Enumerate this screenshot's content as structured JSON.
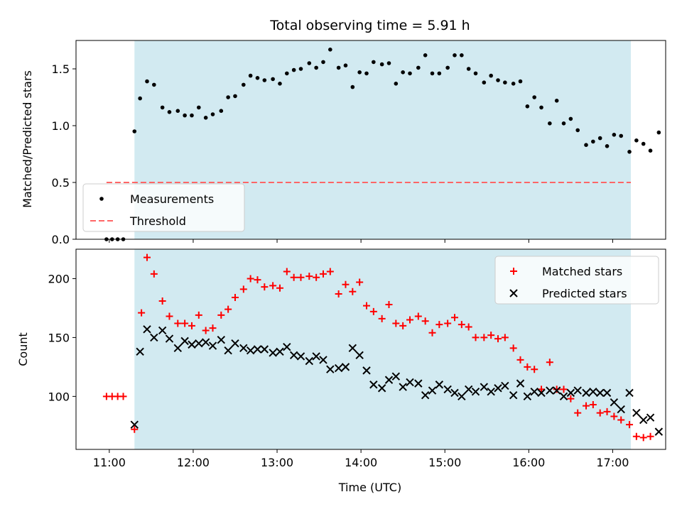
{
  "title": "Total observing time = 5.91 h",
  "chart_data": [
    {
      "type": "scatter",
      "ylabel": "Matched/Predicted stars",
      "ylim": [
        0,
        1.75
      ],
      "yticks": [
        "0.0",
        "0.5",
        "1.0",
        "1.5"
      ],
      "legend_location": "lower-left",
      "shaded_span": {
        "start": "11:18",
        "end": "17:13",
        "color": "#add8e6"
      },
      "threshold": {
        "name": "Threshold",
        "value": 0.5,
        "color": "#ff6666",
        "x_start": "10:58",
        "x_end": "17:13"
      },
      "series": [
        {
          "name": "Measurements",
          "color": "#000000",
          "marker": "dot",
          "points": [
            [
              "10:58",
              0
            ],
            [
              "11:02",
              0
            ],
            [
              "11:06",
              0
            ],
            [
              "11:10",
              0
            ],
            [
              "11:18",
              0.95
            ],
            [
              "11:22",
              1.24
            ],
            [
              "11:27",
              1.39
            ],
            [
              "11:32",
              1.36
            ],
            [
              "11:38",
              1.16
            ],
            [
              "11:43",
              1.12
            ],
            [
              "11:49",
              1.13
            ],
            [
              "11:54",
              1.09
            ],
            [
              "11:59",
              1.09
            ],
            [
              "12:04",
              1.16
            ],
            [
              "12:09",
              1.07
            ],
            [
              "12:14",
              1.1
            ],
            [
              "12:20",
              1.13
            ],
            [
              "12:25",
              1.25
            ],
            [
              "12:30",
              1.26
            ],
            [
              "12:36",
              1.36
            ],
            [
              "12:41",
              1.44
            ],
            [
              "12:46",
              1.42
            ],
            [
              "12:51",
              1.4
            ],
            [
              "12:57",
              1.41
            ],
            [
              "13:02",
              1.37
            ],
            [
              "13:07",
              1.46
            ],
            [
              "13:12",
              1.49
            ],
            [
              "13:17",
              1.5
            ],
            [
              "13:23",
              1.55
            ],
            [
              "13:28",
              1.51
            ],
            [
              "13:33",
              1.56
            ],
            [
              "13:38",
              1.67
            ],
            [
              "13:44",
              1.51
            ],
            [
              "13:49",
              1.53
            ],
            [
              "13:54",
              1.34
            ],
            [
              "13:59",
              1.47
            ],
            [
              "14:04",
              1.46
            ],
            [
              "14:09",
              1.56
            ],
            [
              "14:15",
              1.54
            ],
            [
              "14:20",
              1.55
            ],
            [
              "14:25",
              1.37
            ],
            [
              "14:30",
              1.47
            ],
            [
              "14:35",
              1.46
            ],
            [
              "14:41",
              1.51
            ],
            [
              "14:46",
              1.62
            ],
            [
              "14:51",
              1.46
            ],
            [
              "14:56",
              1.46
            ],
            [
              "15:02",
              1.51
            ],
            [
              "15:07",
              1.62
            ],
            [
              "15:12",
              1.62
            ],
            [
              "15:17",
              1.5
            ],
            [
              "15:22",
              1.46
            ],
            [
              "15:28",
              1.38
            ],
            [
              "15:33",
              1.44
            ],
            [
              "15:38",
              1.4
            ],
            [
              "15:43",
              1.38
            ],
            [
              "15:49",
              1.37
            ],
            [
              "15:54",
              1.39
            ],
            [
              "15:59",
              1.17
            ],
            [
              "16:04",
              1.25
            ],
            [
              "16:09",
              1.16
            ],
            [
              "16:15",
              1.02
            ],
            [
              "16:20",
              1.22
            ],
            [
              "16:25",
              1.02
            ],
            [
              "16:30",
              1.06
            ],
            [
              "16:35",
              0.96
            ],
            [
              "16:41",
              0.83
            ],
            [
              "16:46",
              0.86
            ],
            [
              "16:51",
              0.89
            ],
            [
              "16:56",
              0.82
            ],
            [
              "17:01",
              0.92
            ],
            [
              "17:06",
              0.91
            ],
            [
              "17:12",
              0.77
            ],
            [
              "17:17",
              0.87
            ],
            [
              "17:22",
              0.84
            ],
            [
              "17:27",
              0.78
            ],
            [
              "17:33",
              0.94
            ]
          ]
        }
      ]
    },
    {
      "type": "scatter",
      "title": "",
      "xlabel": "Time (UTC)",
      "ylabel": "Count",
      "ylim": [
        55,
        225
      ],
      "yticks": [
        "100",
        "150",
        "200"
      ],
      "xticks": [
        "11:00",
        "12:00",
        "13:00",
        "14:00",
        "15:00",
        "16:00",
        "17:00"
      ],
      "legend_location": "upper-right",
      "shaded_span": {
        "start": "11:18",
        "end": "17:13",
        "color": "#add8e6"
      },
      "series": [
        {
          "name": "Matched stars",
          "color": "#ff0000",
          "marker": "plus",
          "points": [
            [
              "10:58",
              100
            ],
            [
              "11:02",
              100
            ],
            [
              "11:06",
              100
            ],
            [
              "11:10",
              100
            ],
            [
              "11:18",
              72
            ],
            [
              "11:23",
              171
            ],
            [
              "11:27",
              218
            ],
            [
              "11:32",
              204
            ],
            [
              "11:38",
              181
            ],
            [
              "11:43",
              168
            ],
            [
              "11:49",
              162
            ],
            [
              "11:54",
              162
            ],
            [
              "11:59",
              160
            ],
            [
              "12:04",
              169
            ],
            [
              "12:09",
              156
            ],
            [
              "12:14",
              158
            ],
            [
              "12:20",
              169
            ],
            [
              "12:25",
              174
            ],
            [
              "12:30",
              184
            ],
            [
              "12:36",
              191
            ],
            [
              "12:41",
              200
            ],
            [
              "12:46",
              199
            ],
            [
              "12:51",
              193
            ],
            [
              "12:57",
              194
            ],
            [
              "13:02",
              192
            ],
            [
              "13:07",
              206
            ],
            [
              "13:12",
              201
            ],
            [
              "13:17",
              201
            ],
            [
              "13:23",
              202
            ],
            [
              "13:28",
              201
            ],
            [
              "13:33",
              204
            ],
            [
              "13:38",
              206
            ],
            [
              "13:44",
              187
            ],
            [
              "13:49",
              195
            ],
            [
              "13:54",
              189
            ],
            [
              "13:59",
              197
            ],
            [
              "14:04",
              177
            ],
            [
              "14:09",
              172
            ],
            [
              "14:15",
              166
            ],
            [
              "14:20",
              178
            ],
            [
              "14:25",
              162
            ],
            [
              "14:30",
              160
            ],
            [
              "14:35",
              165
            ],
            [
              "14:41",
              168
            ],
            [
              "14:46",
              164
            ],
            [
              "14:51",
              154
            ],
            [
              "14:56",
              161
            ],
            [
              "15:02",
              162
            ],
            [
              "15:07",
              167
            ],
            [
              "15:12",
              161
            ],
            [
              "15:17",
              159
            ],
            [
              "15:22",
              150
            ],
            [
              "15:28",
              150
            ],
            [
              "15:33",
              152
            ],
            [
              "15:38",
              149
            ],
            [
              "15:43",
              150
            ],
            [
              "15:49",
              141
            ],
            [
              "15:54",
              131
            ],
            [
              "15:59",
              125
            ],
            [
              "16:04",
              123
            ],
            [
              "16:09",
              106
            ],
            [
              "16:15",
              129
            ],
            [
              "16:20",
              106
            ],
            [
              "16:25",
              106
            ],
            [
              "16:30",
              98
            ],
            [
              "16:35",
              86
            ],
            [
              "16:41",
              92
            ],
            [
              "16:46",
              93
            ],
            [
              "16:51",
              86
            ],
            [
              "16:56",
              87
            ],
            [
              "17:01",
              83
            ],
            [
              "17:06",
              80
            ],
            [
              "17:12",
              76
            ],
            [
              "17:17",
              66
            ],
            [
              "17:22",
              65
            ],
            [
              "17:27",
              66
            ]
          ]
        },
        {
          "name": "Predicted stars",
          "color": "#000000",
          "marker": "x",
          "points": [
            [
              "11:18",
              76
            ],
            [
              "11:22",
              138
            ],
            [
              "11:27",
              157
            ],
            [
              "11:32",
              150
            ],
            [
              "11:38",
              156
            ],
            [
              "11:43",
              149
            ],
            [
              "11:49",
              141
            ],
            [
              "11:54",
              147
            ],
            [
              "11:59",
              144
            ],
            [
              "12:04",
              145
            ],
            [
              "12:09",
              146
            ],
            [
              "12:14",
              143
            ],
            [
              "12:20",
              148
            ],
            [
              "12:25",
              139
            ],
            [
              "12:30",
              145
            ],
            [
              "12:36",
              141
            ],
            [
              "12:41",
              139
            ],
            [
              "12:46",
              140
            ],
            [
              "12:51",
              140
            ],
            [
              "12:57",
              137
            ],
            [
              "13:02",
              138
            ],
            [
              "13:07",
              142
            ],
            [
              "13:12",
              135
            ],
            [
              "13:17",
              134
            ],
            [
              "13:23",
              130
            ],
            [
              "13:28",
              134
            ],
            [
              "13:33",
              131
            ],
            [
              "13:38",
              123
            ],
            [
              "13:44",
              124
            ],
            [
              "13:49",
              125
            ],
            [
              "13:54",
              141
            ],
            [
              "13:59",
              135
            ],
            [
              "14:04",
              122
            ],
            [
              "14:09",
              110
            ],
            [
              "14:15",
              107
            ],
            [
              "14:20",
              114
            ],
            [
              "14:25",
              117
            ],
            [
              "14:30",
              108
            ],
            [
              "14:35",
              112
            ],
            [
              "14:41",
              111
            ],
            [
              "14:46",
              101
            ],
            [
              "14:51",
              105
            ],
            [
              "14:56",
              110
            ],
            [
              "15:02",
              106
            ],
            [
              "15:07",
              103
            ],
            [
              "15:12",
              100
            ],
            [
              "15:17",
              106
            ],
            [
              "15:22",
              104
            ],
            [
              "15:28",
              108
            ],
            [
              "15:33",
              104
            ],
            [
              "15:38",
              107
            ],
            [
              "15:43",
              109
            ],
            [
              "15:49",
              101
            ],
            [
              "15:54",
              111
            ],
            [
              "15:59",
              100
            ],
            [
              "16:04",
              104
            ],
            [
              "16:09",
              103
            ],
            [
              "16:15",
              105
            ],
            [
              "16:20",
              105
            ],
            [
              "16:25",
              100
            ],
            [
              "16:30",
              103
            ],
            [
              "16:35",
              105
            ],
            [
              "16:41",
              103
            ],
            [
              "16:46",
              104
            ],
            [
              "16:51",
              103
            ],
            [
              "16:56",
              103
            ],
            [
              "17:01",
              95
            ],
            [
              "17:06",
              89
            ],
            [
              "17:12",
              103
            ],
            [
              "17:17",
              86
            ],
            [
              "17:22",
              80
            ],
            [
              "17:27",
              82
            ],
            [
              "17:33",
              70
            ]
          ]
        }
      ]
    }
  ]
}
